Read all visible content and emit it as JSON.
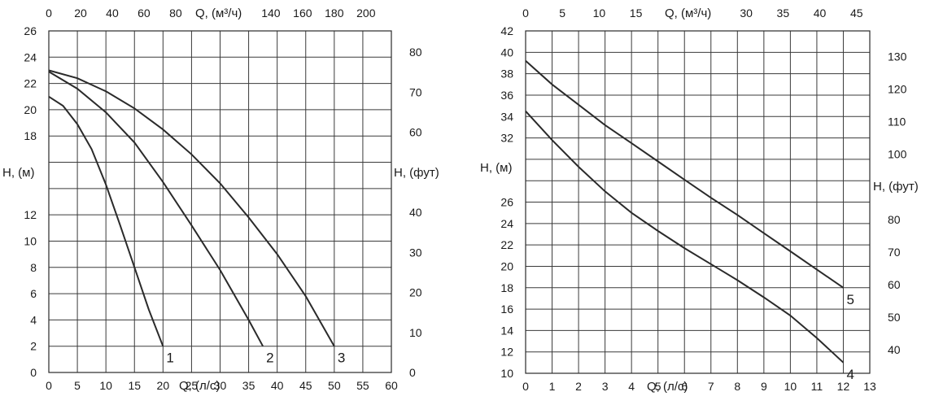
{
  "chart_data": [
    {
      "type": "line",
      "xlabel": "Q, (л/с)",
      "x2label": "Q, (м³/ч)",
      "ylabel": "H, (м)",
      "y2label": "H, (фут)",
      "xlim": [
        0,
        60
      ],
      "xticks": [
        "0",
        "5",
        "10",
        "15",
        "20",
        "25",
        "30",
        "35",
        "40",
        "45",
        "50",
        "55",
        "60"
      ],
      "x2lim": [
        0,
        216
      ],
      "x2ticks": [
        {
          "value": 0,
          "label": "0"
        },
        {
          "value": 20,
          "label": "20"
        },
        {
          "value": 40,
          "label": "40"
        },
        {
          "value": 60,
          "label": "60"
        },
        {
          "value": 80,
          "label": "80"
        },
        {
          "value": 140,
          "label": "140"
        },
        {
          "value": 160,
          "label": "160"
        },
        {
          "value": 180,
          "label": "180"
        },
        {
          "value": 200,
          "label": "200"
        }
      ],
      "ylim": [
        0,
        26
      ],
      "yticks": [
        "0",
        "2",
        "4",
        "6",
        "8",
        "10",
        "12",
        "18",
        "20",
        "22",
        "24",
        "26"
      ],
      "y2lim": [
        0,
        85.3
      ],
      "y2ticks": [
        "0",
        "10",
        "20",
        "30",
        "40",
        "60",
        "70",
        "80"
      ],
      "grid": true,
      "series": [
        {
          "name": "1",
          "x": [
            0,
            2.5,
            5,
            7.5,
            10,
            12.5,
            15,
            17.5,
            20
          ],
          "y": [
            21,
            20.3,
            18.9,
            17,
            14.3,
            11.2,
            8,
            4.8,
            2
          ]
        },
        {
          "name": "2",
          "x": [
            0,
            5,
            10,
            15,
            20,
            25,
            30,
            35,
            37.5
          ],
          "y": [
            22.9,
            21.6,
            19.8,
            17.5,
            14.5,
            11.2,
            7.8,
            4,
            2
          ]
        },
        {
          "name": "3",
          "x": [
            0,
            5,
            10,
            15,
            20,
            25,
            30,
            35,
            40,
            45,
            50
          ],
          "y": [
            23,
            22.4,
            21.4,
            20.1,
            18.5,
            16.6,
            14.4,
            11.8,
            9,
            5.8,
            2
          ]
        }
      ]
    },
    {
      "type": "line",
      "xlabel": "Q, (л/с)",
      "x2label": "Q, (м³/ч)",
      "ylabel": "H, (м)",
      "y2label": "H, (фут)",
      "xlim": [
        0,
        13
      ],
      "xticks": [
        "0",
        "1",
        "2",
        "3",
        "4",
        "5",
        "6",
        "7",
        "8",
        "9",
        "10",
        "11",
        "12",
        "13"
      ],
      "x2lim": [
        0,
        46.8
      ],
      "x2ticks": [
        {
          "value": 0,
          "label": "0"
        },
        {
          "value": 5,
          "label": "5"
        },
        {
          "value": 10,
          "label": "10"
        },
        {
          "value": 15,
          "label": "15"
        },
        {
          "value": 30,
          "label": "30"
        },
        {
          "value": 35,
          "label": "35"
        },
        {
          "value": 40,
          "label": "40"
        },
        {
          "value": 45,
          "label": "45"
        }
      ],
      "ylim": [
        10,
        42
      ],
      "yticks": [
        "10",
        "12",
        "14",
        "16",
        "18",
        "20",
        "22",
        "24",
        "26",
        "32",
        "34",
        "36",
        "38",
        "40",
        "42"
      ],
      "y2lim": [
        32.8,
        137.8
      ],
      "y2ticks": [
        "40",
        "50",
        "60",
        "70",
        "80",
        "100",
        "110",
        "120",
        "130"
      ],
      "grid": true,
      "series": [
        {
          "name": "4",
          "x": [
            0,
            1,
            2,
            3,
            4,
            5,
            6,
            7,
            8,
            9,
            10,
            11,
            12
          ],
          "y": [
            34.5,
            31.8,
            29.3,
            27,
            25,
            23.3,
            21.7,
            20.2,
            18.7,
            17.1,
            15.4,
            13.3,
            11
          ]
        },
        {
          "name": "5",
          "x": [
            0,
            1,
            2,
            3,
            4,
            5,
            6,
            7,
            8,
            9,
            10,
            11,
            12
          ],
          "y": [
            39.2,
            37,
            35.1,
            33.2,
            31.5,
            29.8,
            28.1,
            26.4,
            24.8,
            23.1,
            21.4,
            19.7,
            18
          ]
        }
      ]
    }
  ]
}
